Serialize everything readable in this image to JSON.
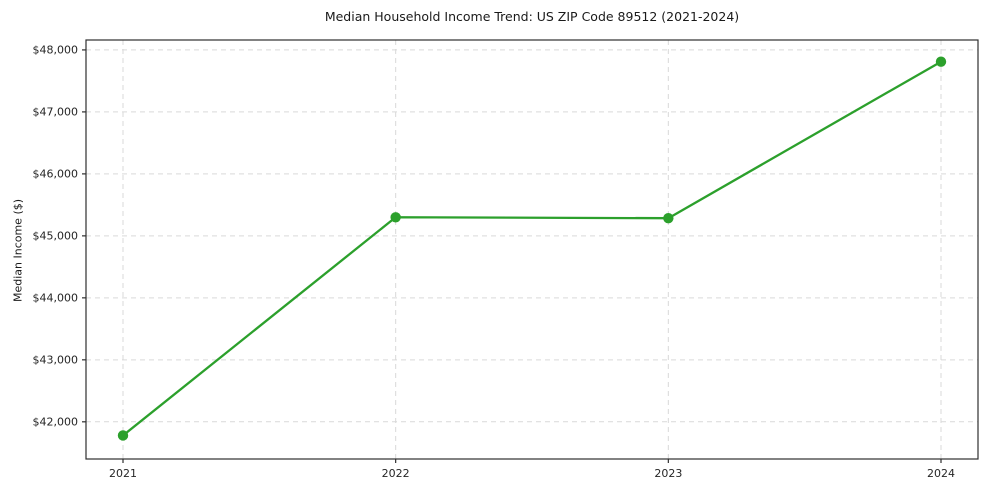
{
  "chart_data": {
    "type": "line",
    "title": "Median Household Income Trend: US ZIP Code 89512 (2021-2024)",
    "xlabel": "",
    "ylabel": "Median Income ($)",
    "categories": [
      "2021",
      "2022",
      "2023",
      "2024"
    ],
    "series": [
      {
        "name": "Median Household Income",
        "values": [
          41780,
          45300,
          45285,
          47810
        ]
      }
    ],
    "ytick_values": [
      42000,
      43000,
      44000,
      45000,
      46000,
      47000,
      48000
    ],
    "ytick_labels": [
      "$42,000",
      "$43,000",
      "$44,000",
      "$45,000",
      "$46,000",
      "$47,000",
      "$48,000"
    ],
    "ylim": [
      41400,
      48160
    ],
    "grid": true,
    "legend": "none",
    "line_color": "#2ca02c",
    "marker": "circle",
    "marker_color": "#2ca02c",
    "grid_color": "#d9d9d9",
    "spine_color": "#2e2e2e",
    "background": "#ffffff"
  }
}
